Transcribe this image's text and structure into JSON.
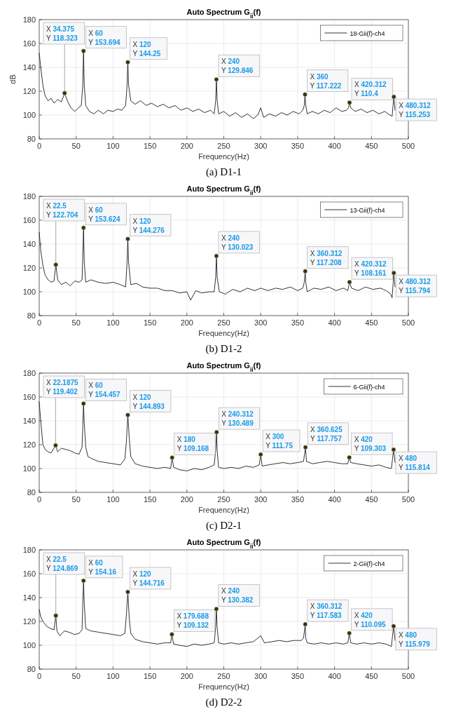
{
  "chart_data": [
    {
      "type": "line",
      "title": "Auto Spectrum G$_{ii}$(f)",
      "xlabel": "Frequency(Hz)",
      "ylabel": "dB",
      "xlim": [
        0,
        500
      ],
      "xticks": [
        0,
        50,
        100,
        150,
        200,
        250,
        300,
        350,
        400,
        450,
        500
      ],
      "ylim": [
        80,
        180
      ],
      "yticks": [
        80,
        100,
        120,
        140,
        160,
        180
      ],
      "grid": true,
      "legend": "top right",
      "line_style": "solid",
      "series": [
        {
          "name": "18-Gii(f)-ch4",
          "color": "#000000",
          "x": [
            0,
            2,
            5,
            8,
            12,
            16,
            20,
            25,
            30,
            34.375,
            38,
            43,
            48,
            53,
            57,
            59,
            60,
            61,
            63,
            68,
            74,
            80,
            87,
            93,
            100,
            106,
            112,
            117,
            119,
            120,
            121,
            124,
            130,
            137,
            145,
            152,
            160,
            168,
            176,
            184,
            192,
            200,
            208,
            216,
            224,
            232,
            237,
            239,
            240,
            241,
            243,
            250,
            258,
            266,
            274,
            282,
            290,
            296,
            300,
            304,
            312,
            320,
            328,
            336,
            344,
            352,
            357,
            359,
            360,
            361,
            363,
            370,
            378,
            386,
            394,
            402,
            410,
            416,
            419,
            420.312,
            422,
            428,
            436,
            444,
            452,
            460,
            468,
            475,
            478,
            480.312,
            482
          ],
          "values": [
            152,
            140,
            125,
            116,
            112,
            114,
            110,
            113,
            111,
            118.323,
            112,
            106,
            103,
            106,
            108,
            125,
            153.694,
            125,
            108,
            103,
            101,
            104,
            101,
            104,
            103,
            105,
            104,
            108,
            125,
            144.25,
            125,
            112,
            109,
            112,
            108,
            110,
            107,
            109,
            106,
            108,
            104,
            106,
            103,
            105,
            102,
            104,
            101,
            112,
            129.846,
            112,
            101,
            103,
            99,
            102,
            98,
            101,
            97,
            100,
            106,
            98,
            101,
            99,
            102,
            100,
            103,
            101,
            104,
            108,
            117.222,
            108,
            101,
            103,
            101,
            104,
            102,
            106,
            103,
            104,
            106,
            110.4,
            106,
            103,
            105,
            102,
            104,
            101,
            103,
            100,
            99,
            115.253,
            104
          ]
        },
        {
          "type": "scatter",
          "color": "#333316",
          "marker": "circle",
          "x": [
            34.375,
            60,
            120,
            240,
            360,
            420.312,
            480.312
          ],
          "values": [
            118.323,
            153.694,
            144.25,
            129.846,
            117.222,
            110.4,
            115.253
          ]
        }
      ],
      "annotations": [
        {
          "text": "X 34.375\nY 118.323",
          "x": 34.375,
          "y": 118.323
        },
        {
          "text": "X 60\nY 153.694",
          "x": 60,
          "y": 153.694
        },
        {
          "text": "X 120\nY 144.25",
          "x": 120,
          "y": 144.25
        },
        {
          "text": "X 240\nY 129.846",
          "x": 240,
          "y": 129.846
        },
        {
          "text": "X 360\nY 117.222",
          "x": 360,
          "y": 117.222
        },
        {
          "text": "X 420.312\nY 110.4",
          "x": 420.312,
          "y": 110.4
        },
        {
          "text": "X 480.312\nY 115.253",
          "x": 480.312,
          "y": 115.253
        },
        "(a) D1-1"
      ]
    },
    {
      "type": "line",
      "title": "Auto Spectrum G$_{ii}$(f)",
      "xlabel": "Frequency(Hz)",
      "xlim": [
        0,
        500
      ],
      "xticks": [
        0,
        50,
        100,
        150,
        200,
        250,
        300,
        350,
        400,
        450,
        500
      ],
      "ylim": [
        80,
        180
      ],
      "yticks": [
        80,
        100,
        120,
        140,
        160,
        180
      ],
      "grid": true,
      "legend": "top right",
      "line_style": "solid",
      "series": [
        {
          "name": "13-Gii(f)-ch4",
          "color": "#000000",
          "x": [
            0,
            2,
            5,
            8,
            12,
            16,
            20,
            22.5,
            25,
            30,
            36,
            42,
            48,
            54,
            58,
            59,
            60,
            61,
            63,
            70,
            80,
            90,
            100,
            110,
            117,
            119,
            120,
            121,
            124,
            132,
            140,
            150,
            160,
            170,
            180,
            190,
            200,
            205,
            212,
            220,
            230,
            237,
            239,
            240,
            241,
            244,
            252,
            262,
            272,
            282,
            292,
            300,
            310,
            320,
            330,
            340,
            350,
            357,
            359,
            360.312,
            361,
            363,
            372,
            382,
            392,
            402,
            412,
            418,
            420.312,
            423,
            432,
            442,
            452,
            462,
            470,
            476,
            478,
            480.312,
            482
          ],
          "values": [
            150,
            135,
            122,
            114,
            110,
            108,
            109,
            122.704,
            110,
            106,
            108,
            105,
            109,
            108,
            110,
            130,
            153.624,
            125,
            108,
            110,
            108,
            107,
            108,
            106,
            104,
            125,
            144.276,
            125,
            106,
            107,
            104,
            103,
            103,
            101,
            101,
            99,
            100,
            93,
            101,
            99,
            100,
            100,
            112,
            130.023,
            112,
            100,
            98,
            102,
            100,
            103,
            101,
            103,
            101,
            103,
            102,
            104,
            101,
            103,
            108,
            117.208,
            108,
            100,
            103,
            102,
            104,
            101,
            103,
            101,
            108.161,
            103,
            101,
            104,
            102,
            103,
            101,
            98,
            95,
            115.794,
            104
          ]
        },
        {
          "type": "scatter",
          "color": "#333316",
          "marker": "circle",
          "x": [
            22.5,
            60,
            120,
            240,
            360.312,
            420.312,
            480.312
          ],
          "values": [
            122.704,
            153.624,
            144.276,
            130.023,
            117.208,
            108.161,
            115.794
          ]
        }
      ],
      "annotations": [
        {
          "text": "X 22.5\nY 122.704",
          "x": 22.5,
          "y": 122.704
        },
        {
          "text": "X 60\nY 153.624",
          "x": 60,
          "y": 153.624
        },
        {
          "text": "X 120\nY 144.276",
          "x": 120,
          "y": 144.276
        },
        {
          "text": "X 240\nY 130.023",
          "x": 240,
          "y": 130.023
        },
        {
          "text": "X 360.312\nY 117.208",
          "x": 360.312,
          "y": 117.208
        },
        {
          "text": "X 420.312\nY 108.161",
          "x": 420.312,
          "y": 108.161
        },
        {
          "text": "X 480.312\nY 115.794",
          "x": 480.312,
          "y": 115.794
        },
        "(b) D1-2"
      ]
    },
    {
      "type": "line",
      "title": "Auto Spectrum G$_{ii}$(f)",
      "xlabel": "Frequency(Hz)",
      "xlim": [
        0,
        500
      ],
      "xticks": [
        0,
        50,
        100,
        150,
        200,
        250,
        300,
        350,
        400,
        450,
        500
      ],
      "ylim": [
        80,
        180
      ],
      "yticks": [
        80,
        100,
        120,
        140,
        160,
        180
      ],
      "grid": true,
      "legend": "top right",
      "line_style": "solid",
      "series": [
        {
          "name": "6-Gii(f)-ch4",
          "color": "#000000",
          "x": [
            0,
            2,
            5,
            8,
            12,
            16,
            22.1875,
            25,
            30,
            36,
            42,
            48,
            54,
            58,
            59,
            60,
            61,
            63,
            66,
            72,
            80,
            90,
            100,
            110,
            116,
            118,
            120,
            122,
            124,
            130,
            140,
            150,
            160,
            170,
            178,
            180,
            182,
            190,
            200,
            210,
            220,
            230,
            237,
            239,
            240.312,
            241,
            243,
            250,
            260,
            270,
            280,
            290,
            298,
            300,
            302,
            310,
            320,
            330,
            340,
            350,
            358,
            360.625,
            362,
            370,
            380,
            390,
            400,
            410,
            418,
            420,
            422,
            430,
            440,
            450,
            460,
            470,
            477,
            480,
            482
          ],
          "values": [
            156,
            140,
            120,
            116,
            114,
            113,
            119.402,
            114,
            117,
            116,
            115,
            113,
            112,
            118,
            135,
            154.457,
            138,
            118,
            110,
            108,
            106,
            105,
            104,
            103,
            108,
            122,
            144.893,
            125,
            110,
            104,
            102,
            101,
            100,
            101,
            100,
            109.168,
            101,
            99,
            98,
            100,
            99,
            101,
            103,
            115,
            130.489,
            115,
            101,
            100,
            101,
            100,
            102,
            101,
            103,
            111.75,
            102,
            103,
            104,
            105,
            104,
            105,
            106,
            117.757,
            106,
            104,
            105,
            106,
            105,
            104,
            104,
            109.303,
            105,
            104,
            103,
            102,
            103,
            101,
            100,
            115.814,
            105
          ]
        },
        {
          "type": "scatter",
          "color": "#333316",
          "marker": "circle",
          "x": [
            22.1875,
            60,
            120,
            180,
            240.312,
            300,
            360.625,
            420,
            480
          ],
          "values": [
            119.402,
            154.457,
            144.893,
            109.168,
            130.489,
            111.75,
            117.757,
            109.303,
            115.814
          ]
        }
      ],
      "annotations": [
        {
          "text": "X 22.1875\nY 119.402",
          "x": 22.1875,
          "y": 119.402
        },
        {
          "text": "X 60\nY 154.457",
          "x": 60,
          "y": 154.457
        },
        {
          "text": "X 120\nY 144.893",
          "x": 120,
          "y": 144.893
        },
        {
          "text": "X 180\nY 109.168",
          "x": 180,
          "y": 109.168
        },
        {
          "text": "X 240.312\nY 130.489",
          "x": 240.312,
          "y": 130.489
        },
        {
          "text": "X 300\nY 111.75",
          "x": 300,
          "y": 111.75
        },
        {
          "text": "X 360.625\nY 117.757",
          "x": 360.625,
          "y": 117.757
        },
        {
          "text": "X 420\nY 109.303",
          "x": 420,
          "y": 109.303
        },
        {
          "text": "X 480\nY 115.814",
          "x": 480,
          "y": 115.814
        },
        "(c) D2-1"
      ]
    },
    {
      "type": "line",
      "title": "Auto Spectrum G$_{ii}$(f)",
      "xlabel": "Frequency(Hz)",
      "xlim": [
        0,
        500
      ],
      "xticks": [
        0,
        50,
        100,
        150,
        200,
        250,
        300,
        350,
        400,
        450,
        500
      ],
      "ylim": [
        80,
        180
      ],
      "yticks": [
        80,
        100,
        120,
        140,
        160,
        180
      ],
      "grid": true,
      "legend": "top right",
      "line_style": "solid",
      "series": [
        {
          "name": "2-Gii(f)-ch4",
          "color": "#000000",
          "x": [
            0,
            2,
            5,
            10,
            15,
            20,
            22.5,
            24,
            28,
            34,
            40,
            48,
            54,
            58,
            59,
            60,
            61,
            63,
            70,
            80,
            90,
            100,
            110,
            116,
            118,
            120,
            122,
            124,
            130,
            140,
            150,
            160,
            170,
            178,
            179.688,
            182,
            190,
            200,
            210,
            220,
            230,
            237,
            239,
            240,
            241,
            243,
            250,
            260,
            270,
            280,
            290,
            300,
            305,
            315,
            325,
            335,
            345,
            355,
            358,
            360.312,
            361,
            363,
            372,
            382,
            392,
            402,
            412,
            418,
            420,
            422,
            430,
            440,
            450,
            460,
            470,
            477,
            480,
            482
          ],
          "values": [
            130,
            124,
            120,
            116,
            114,
            113,
            124.869,
            112,
            108,
            112,
            111,
            109,
            110,
            113,
            135,
            154.16,
            135,
            114,
            112,
            111,
            110,
            109,
            108,
            110,
            125,
            144.716,
            122,
            110,
            105,
            103,
            102,
            101,
            102,
            102,
            109.132,
            101,
            100,
            99,
            101,
            100,
            101,
            102,
            115,
            130.382,
            115,
            102,
            101,
            102,
            101,
            102,
            103,
            108,
            102,
            103,
            104,
            103,
            104,
            104,
            106,
            117.583,
            106,
            102,
            101,
            102,
            101,
            102,
            101,
            102,
            110.095,
            102,
            101,
            102,
            101,
            102,
            101,
            99,
            115.979,
            104
          ]
        },
        {
          "type": "scatter",
          "color": "#333316",
          "marker": "circle",
          "x": [
            22.5,
            60,
            120,
            179.688,
            240,
            360.312,
            420,
            480
          ],
          "values": [
            124.869,
            154.16,
            144.716,
            109.132,
            130.382,
            117.583,
            110.095,
            115.979
          ]
        }
      ],
      "annotations": [
        {
          "text": "X 22.5\nY 124.869",
          "x": 22.5,
          "y": 124.869
        },
        {
          "text": "X 60\nY 154.16",
          "x": 60,
          "y": 154.16
        },
        {
          "text": "X 120\nY 144.716",
          "x": 120,
          "y": 144.716
        },
        {
          "text": "X 179.688\nY 109.132",
          "x": 179.688,
          "y": 109.132
        },
        {
          "text": "X 240\nY 130.382",
          "x": 240,
          "y": 130.382
        },
        {
          "text": "X 360.312\nY 117.583",
          "x": 360.312,
          "y": 117.583
        },
        {
          "text": "X 420\nY 110.095",
          "x": 420,
          "y": 110.095
        },
        {
          "text": "X 480\nY 115.979",
          "x": 480,
          "y": 115.979
        },
        "(d) D2-2"
      ]
    }
  ]
}
